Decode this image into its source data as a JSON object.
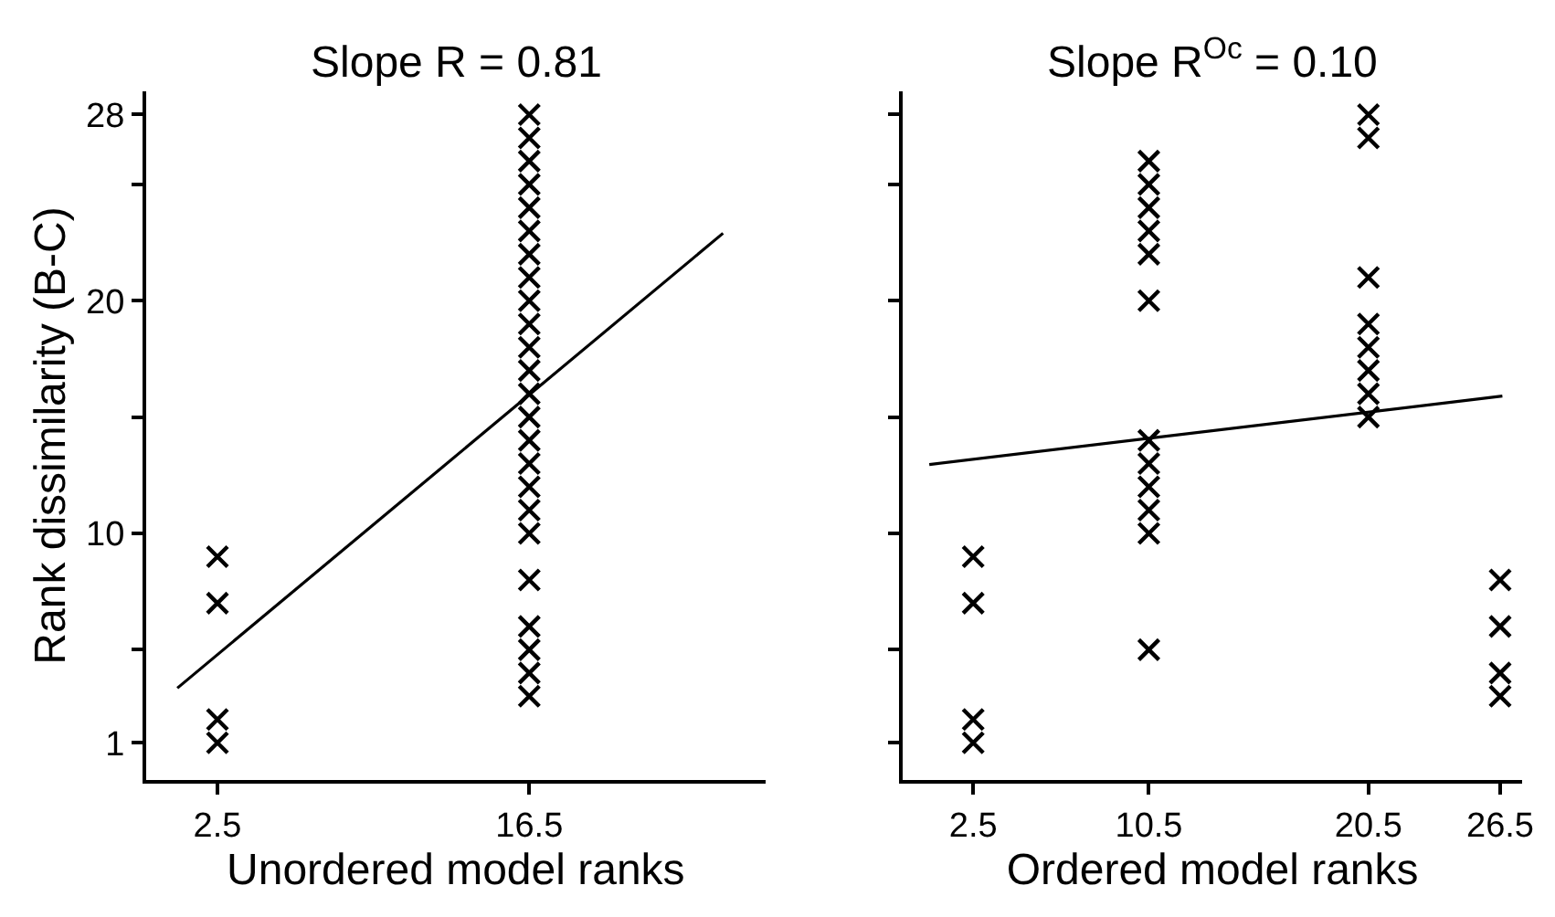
{
  "chart_data": [
    {
      "type": "scatter",
      "title": "Slope R = 0.81",
      "xlabel": "Unordered model ranks",
      "ylabel": "Rank dissimilarity (B-C)",
      "xlim": [
        -0.7,
        27.1
      ],
      "ylim": [
        -0.6,
        29
      ],
      "xticks": [
        2.5,
        16.5
      ],
      "yticks": [
        1,
        {
          "value": 5,
          "label": null
        },
        10,
        {
          "value": 15,
          "label": null
        },
        20,
        {
          "value": 25,
          "label": null
        },
        28
      ],
      "marker": "cross",
      "series": [
        {
          "color": "#000000",
          "x": [
            2.5,
            2.5,
            2.5,
            2.5,
            16.5,
            16.5,
            16.5,
            16.5,
            16.5,
            16.5,
            16.5,
            16.5,
            16.5,
            16.5,
            16.5,
            16.5,
            16.5,
            16.5,
            16.5,
            16.5,
            16.5,
            16.5,
            16.5,
            16.5,
            16.5,
            16.5,
            16.5,
            16.5
          ],
          "values": [
            1,
            2,
            7,
            9,
            3,
            4,
            5,
            6,
            8,
            10,
            11,
            12,
            13,
            14,
            15,
            16,
            17,
            18,
            19,
            20,
            21,
            22,
            23,
            24,
            25,
            26,
            27,
            28
          ]
        },
        {
          "type": "line",
          "color": "#000000",
          "marker": "none",
          "line_style": "solid",
          "x": [
            0.7,
            25.2
          ],
          "values": [
            3.35,
            22.9
          ]
        }
      ]
    },
    {
      "type": "scatter",
      "title": "Slope R$^{Oc}$ = 0.10",
      "xlabel": "Ordered model ranks",
      "xlim": [
        -0.7,
        27.5
      ],
      "ylim": [
        -0.6,
        29
      ],
      "xticks": [
        2.5,
        10.5,
        20.5,
        26.5
      ],
      "yticks": [
        1,
        {
          "value": 5,
          "label": null
        },
        10,
        {
          "value": 15,
          "label": null
        },
        20,
        {
          "value": 25,
          "label": null
        },
        28
      ],
      "tick_labels": "x",
      "marker": "cross",
      "series": [
        {
          "color": "#000000",
          "x": [
            2.5,
            2.5,
            2.5,
            2.5,
            10.5,
            10.5,
            10.5,
            10.5,
            10.5,
            10.5,
            10.5,
            10.5,
            10.5,
            10.5,
            10.5,
            10.5,
            20.5,
            20.5,
            20.5,
            20.5,
            20.5,
            20.5,
            20.5,
            20.5,
            26.5,
            26.5,
            26.5,
            26.5
          ],
          "values": [
            1,
            2,
            7,
            9,
            5,
            10,
            11,
            12,
            13,
            14,
            20,
            22,
            23,
            24,
            25,
            26,
            15,
            16,
            17,
            18,
            19,
            21,
            27,
            28,
            3,
            4,
            6,
            8
          ]
        },
        {
          "type": "line",
          "color": "#000000",
          "marker": "none",
          "line_style": "solid",
          "x": [
            0.5,
            26.6
          ],
          "values": [
            12.96,
            15.9
          ]
        }
      ]
    }
  ]
}
